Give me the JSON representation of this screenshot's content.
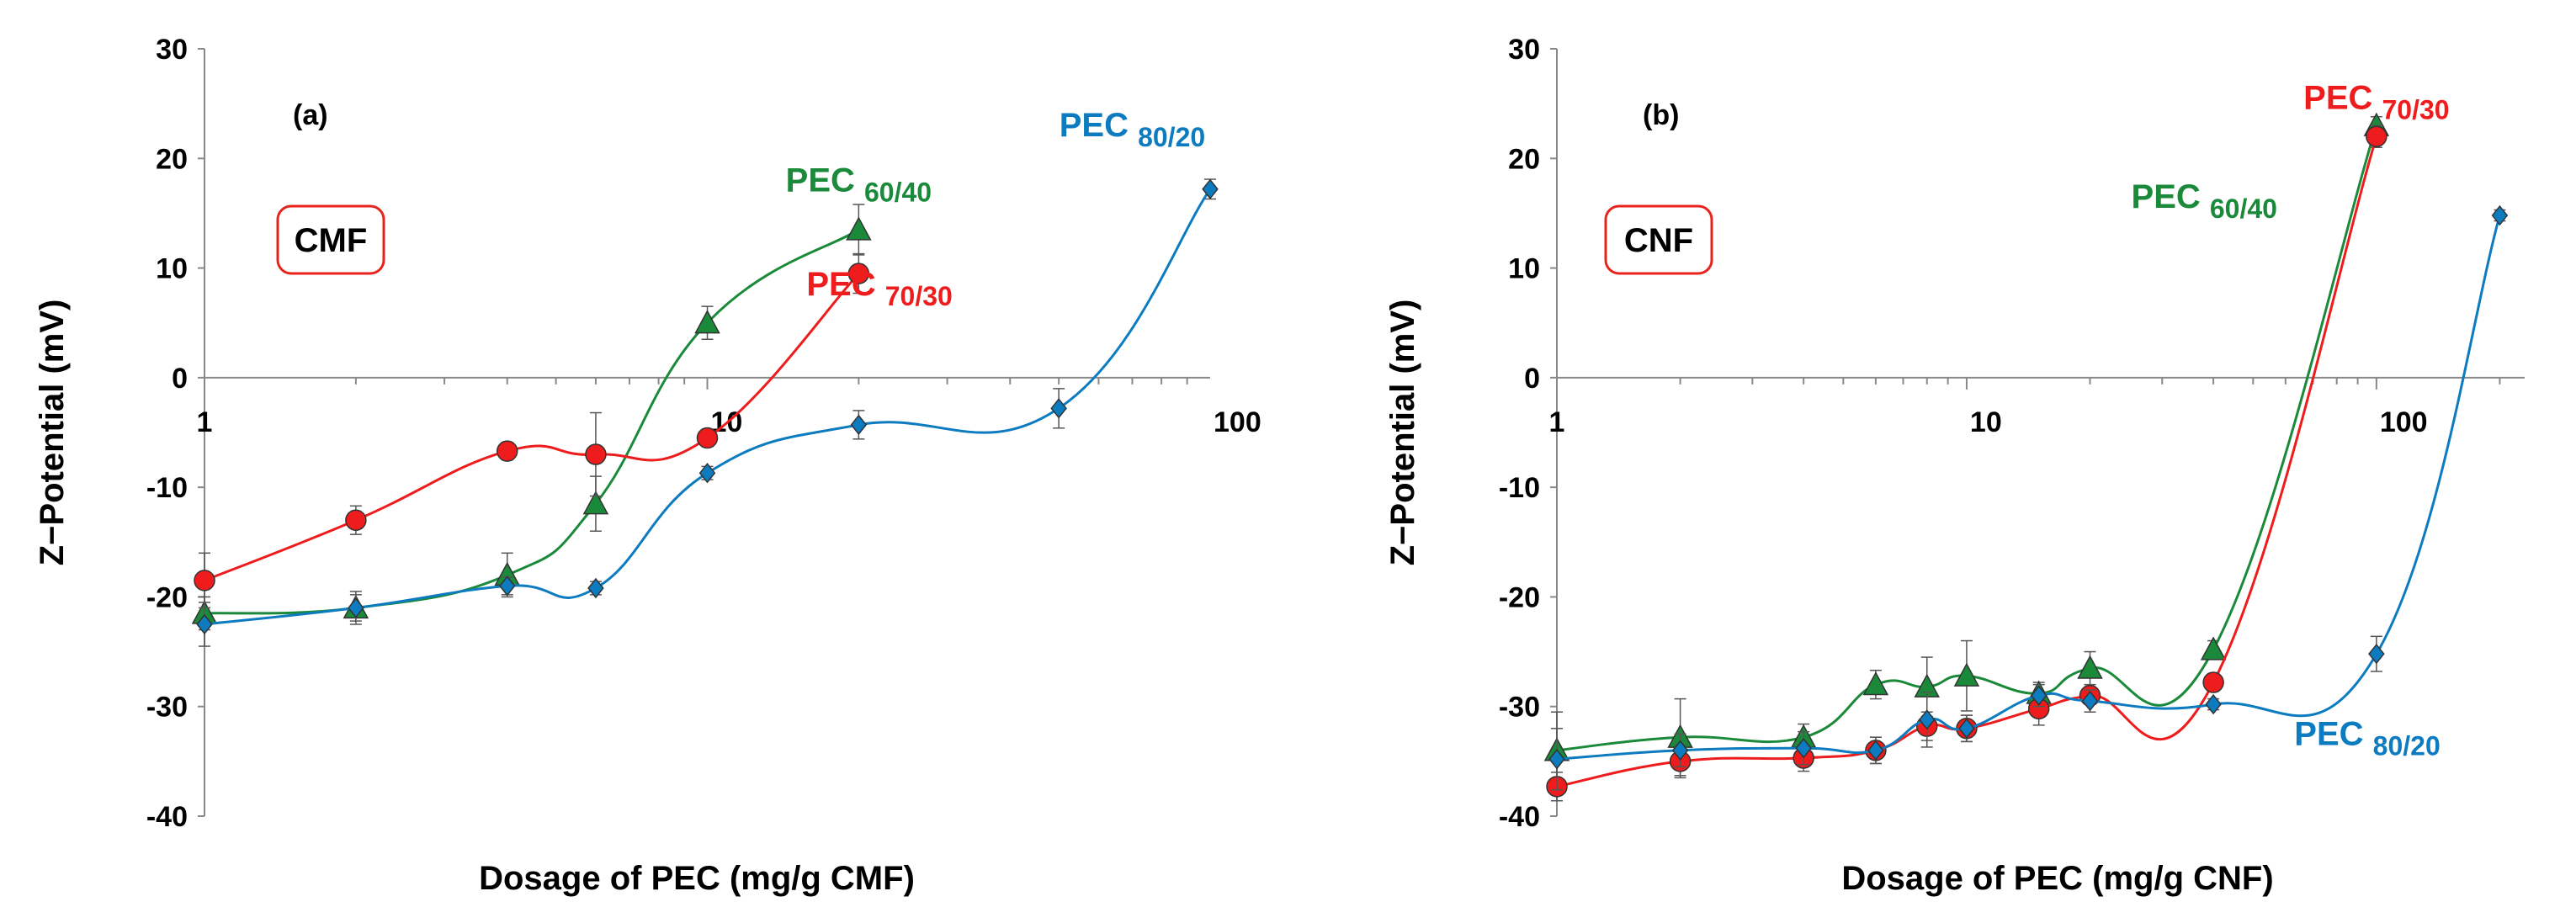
{
  "chart_data": [
    {
      "type": "line",
      "panel_label": "(a)",
      "box_label": "CMF",
      "xlabel": "Dosage of PEC (mg/g CMF)",
      "ylabel": "Z−Potential (mV)",
      "xscale": "log",
      "xlim": [
        1,
        100
      ],
      "ylim": [
        -40,
        30
      ],
      "x_ticks": [
        1,
        10,
        100
      ],
      "x_tick_labels": [
        "1",
        "10",
        "100"
      ],
      "y_ticks": [
        -40,
        -30,
        -20,
        -10,
        0,
        10,
        20,
        30
      ],
      "y_tick_labels": [
        "-40",
        "-30",
        "-20",
        "-10",
        "0",
        "10",
        "20",
        "30"
      ],
      "series": [
        {
          "name": "PEC 60/40",
          "label_main": "PEC",
          "label_sub": "60/40",
          "color": "#1a8a3a",
          "marker": "triangle",
          "x": [
            1,
            2,
            4,
            6,
            10,
            20
          ],
          "y": [
            -21.5,
            -21,
            -18,
            -11.5,
            5,
            13.5
          ],
          "err": [
            1.5,
            1.2,
            2,
            2.5,
            1.5,
            2.3
          ],
          "label_anchor": [
            20,
            17
          ]
        },
        {
          "name": "PEC 70/30",
          "label_main": "PEC",
          "label_sub": "70/30",
          "color": "#ee1c1c",
          "marker": "circle",
          "x": [
            1,
            2,
            4,
            6,
            10,
            20
          ],
          "y": [
            -18.5,
            -13,
            -6.7,
            -7,
            -5.5,
            9.5
          ],
          "err": [
            2.5,
            1.3,
            0.8,
            3.8,
            0.8,
            1.8
          ],
          "label_anchor": [
            22,
            7.5
          ]
        },
        {
          "name": "PEC 80/20",
          "label_main": "PEC",
          "label_sub": "80/20",
          "color": "#0c7bbf",
          "marker": "diamond",
          "x": [
            1,
            2,
            4,
            6,
            10,
            20,
            50,
            100
          ],
          "y": [
            -22.5,
            -21,
            -19,
            -19.2,
            -8.7,
            -4.3,
            -2.8,
            17.2
          ],
          "err": [
            2,
            1.5,
            0.8,
            0.6,
            0.6,
            1.3,
            1.8,
            0.9
          ],
          "label_anchor": [
            70,
            22
          ]
        }
      ]
    },
    {
      "type": "line",
      "panel_label": "(b)",
      "box_label": "CNF",
      "xlabel": "Dosage of PEC (mg/g CNF)",
      "ylabel": "Z−Potential (mV)",
      "xscale": "log",
      "xlim": [
        1,
        230
      ],
      "ylim": [
        -40,
        30
      ],
      "x_ticks": [
        1,
        10,
        100
      ],
      "x_tick_labels": [
        "1",
        "10",
        "100"
      ],
      "y_ticks": [
        -40,
        -30,
        -20,
        -10,
        0,
        10,
        20,
        30
      ],
      "y_tick_labels": [
        "-40",
        "-30",
        "-20",
        "-10",
        "0",
        "10",
        "20",
        "30"
      ],
      "series": [
        {
          "name": "PEC 60/40",
          "label_main": "PEC",
          "label_sub": "60/40",
          "color": "#1a8a3a",
          "marker": "triangle",
          "x": [
            1,
            2,
            4,
            6,
            8,
            10,
            15,
            20,
            40,
            100
          ],
          "y": [
            -34,
            -32.8,
            -32.8,
            -28,
            -28.2,
            -27.2,
            -28.8,
            -26.5,
            -24.8,
            23
          ],
          "err": [
            3.5,
            3.5,
            1.2,
            1.3,
            2.7,
            3.2,
            1,
            1.5,
            0.8,
            0.8
          ],
          "label_anchor": [
            38,
            15.5
          ]
        },
        {
          "name": "PEC 70/30",
          "label_main": "PEC",
          "label_sub": "70/30",
          "color": "#ee1c1c",
          "marker": "circle",
          "x": [
            1,
            2,
            4,
            6,
            8,
            10,
            15,
            20,
            40,
            100
          ],
          "y": [
            -37.3,
            -35,
            -34.7,
            -34,
            -31.8,
            -32,
            -30.2,
            -29,
            -27.8,
            22
          ],
          "err": [
            1.3,
            1.5,
            1.2,
            1.2,
            1.3,
            1.2,
            1.5,
            0.8,
            0.8,
            1
          ],
          "label_anchor": [
            100,
            24.5
          ]
        },
        {
          "name": "PEC 80/20",
          "label_main": "PEC",
          "label_sub": "80/20",
          "color": "#0c7bbf",
          "marker": "diamond",
          "x": [
            1,
            2,
            4,
            6,
            8,
            10,
            15,
            20,
            40,
            100,
            200
          ],
          "y": [
            -34.8,
            -34,
            -33.8,
            -34,
            -31.2,
            -32,
            -29,
            -29.5,
            -29.8,
            -25.2,
            14.8
          ],
          "err": [
            2.8,
            1.5,
            1.5,
            1.2,
            2.5,
            1.2,
            1,
            1,
            0.5,
            1.6,
            0.5
          ],
          "label_anchor": [
            95,
            -33.5
          ]
        }
      ]
    }
  ]
}
